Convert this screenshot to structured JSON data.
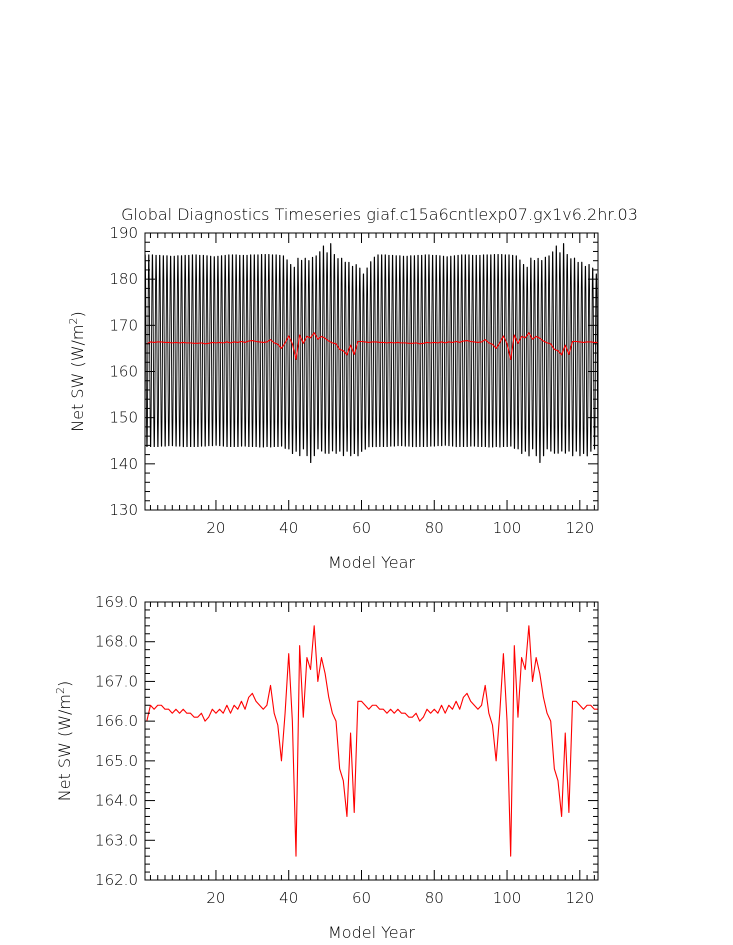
{
  "chart_data": [
    {
      "type": "line",
      "title": "Global Diagnostics Timeseries giaf.c15a6cntlexp07.gx1v6.2hr.03",
      "xlabel": "Model Year",
      "ylabel": "Net SW (W/m",
      "ylabel_sup": "2",
      "ylabel_close": ")",
      "xlim": [
        0.5,
        125
      ],
      "ylim": [
        130,
        190
      ],
      "xticks": [
        20,
        40,
        60,
        80,
        100,
        120
      ],
      "yticks": [
        130,
        140,
        150,
        160,
        170,
        180,
        190
      ],
      "ytick_decimals": 0,
      "grid": false,
      "series": [
        {
          "kind": "monthly",
          "color": "#000000",
          "start_year": 0.5,
          "step": 0.0833333,
          "annual_max": [
            186.0,
            186.0,
            186.0,
            185.9,
            185.9,
            185.8,
            185.8,
            185.7,
            185.7,
            185.8,
            185.8,
            185.9,
            185.9,
            186.0,
            186.0,
            185.9,
            185.9,
            185.8,
            185.7,
            185.6,
            185.7,
            185.8,
            185.9,
            186.0,
            186.0,
            186.0,
            185.9,
            185.9,
            185.9,
            186.0,
            186.0,
            186.0,
            186.1,
            186.1,
            186.1,
            186.0,
            186.0,
            185.9,
            185.8,
            184.9,
            183.9,
            183.3,
            185.3,
            184.8,
            185.3,
            184.8,
            185.5,
            185.8,
            186.7,
            188.0,
            186.5,
            188.5,
            186.1,
            185.2,
            185.3,
            184.4,
            184.4,
            183.5,
            183.9,
            183.1,
            181.8,
            183.1,
            184.5,
            185.5,
            186.0,
            186.0,
            186.0,
            185.9,
            185.9,
            185.8,
            185.8,
            185.7,
            185.7,
            185.8,
            185.8,
            185.9,
            185.9,
            186.0,
            186.0,
            185.9,
            185.9,
            185.8,
            185.7,
            185.6,
            185.7,
            185.8,
            185.9,
            186.0,
            186.0,
            186.0,
            185.9,
            185.9,
            185.9,
            186.0,
            186.0,
            186.0,
            186.1,
            186.1,
            186.1,
            186.0,
            186.0,
            185.9,
            185.8,
            184.9,
            183.9,
            183.3,
            185.3,
            184.8,
            185.3,
            184.8,
            185.5,
            185.8,
            186.7,
            188.0,
            186.5,
            188.5,
            186.1,
            185.2,
            185.3,
            184.4,
            184.4,
            183.5,
            183.9,
            183.1,
            181.8
          ],
          "annual_min": [
            143.0,
            143.0,
            143.0,
            143.0,
            143.1,
            143.1,
            143.2,
            143.2,
            143.1,
            143.1,
            143.0,
            143.0,
            143.0,
            143.0,
            143.0,
            143.1,
            143.1,
            143.2,
            143.2,
            143.3,
            143.2,
            143.1,
            143.0,
            143.0,
            143.0,
            143.0,
            143.1,
            143.1,
            143.0,
            143.0,
            143.0,
            142.9,
            142.9,
            143.0,
            142.9,
            143.0,
            143.0,
            143.1,
            142.6,
            142.5,
            141.5,
            142.0,
            141.0,
            142.5,
            141.0,
            139.5,
            141.0,
            142.5,
            142.0,
            141.5,
            141.5,
            142.0,
            141.5,
            142.0,
            141.0,
            142.0,
            141.0,
            141.5,
            141.0,
            142.0,
            142.5,
            143.0,
            143.0,
            143.0,
            143.0,
            143.0,
            143.0,
            143.1,
            143.1,
            143.2,
            143.2,
            143.1,
            143.1,
            143.0,
            143.0,
            143.0,
            143.0,
            143.0,
            143.1,
            143.1,
            143.2,
            143.2,
            143.3,
            143.2,
            143.1,
            143.0,
            143.0,
            143.0,
            143.0,
            143.1,
            143.1,
            143.0,
            143.0,
            143.0,
            142.9,
            142.9,
            143.0,
            142.9,
            143.0,
            143.0,
            143.1,
            142.6,
            142.5,
            141.5,
            142.0,
            141.0,
            142.5,
            141.0,
            139.5,
            141.0,
            142.5,
            142.0,
            141.5,
            141.5,
            142.0,
            141.5,
            142.0,
            141.0,
            142.0,
            141.0,
            141.5,
            141.0,
            142.0,
            142.5,
            143.0
          ]
        },
        {
          "kind": "annual",
          "color": "#ff0000",
          "x": [
            1,
            2,
            3,
            4,
            5,
            6,
            7,
            8,
            9,
            10,
            11,
            12,
            13,
            14,
            15,
            16,
            17,
            18,
            19,
            20,
            21,
            22,
            23,
            24,
            25,
            26,
            27,
            28,
            29,
            30,
            31,
            32,
            33,
            34,
            35,
            36,
            37,
            38,
            39,
            40,
            41,
            42,
            43,
            44,
            45,
            46,
            47,
            48,
            49,
            50,
            51,
            52,
            53,
            54,
            55,
            56,
            57,
            58,
            59,
            60,
            61,
            62,
            63,
            64,
            65,
            66,
            67,
            68,
            69,
            70,
            71,
            72,
            73,
            74,
            75,
            76,
            77,
            78,
            79,
            80,
            81,
            82,
            83,
            84,
            85,
            86,
            87,
            88,
            89,
            90,
            91,
            92,
            93,
            94,
            95,
            96,
            97,
            98,
            99,
            100,
            101,
            102,
            103,
            104,
            105,
            106,
            107,
            108,
            109,
            110,
            111,
            112,
            113,
            114,
            115,
            116,
            117,
            118,
            119,
            120,
            121,
            122,
            123,
            124,
            125
          ],
          "values": [
            166.0,
            166.4,
            166.3,
            166.4,
            166.4,
            166.3,
            166.3,
            166.2,
            166.3,
            166.2,
            166.3,
            166.2,
            166.2,
            166.1,
            166.1,
            166.2,
            166.0,
            166.1,
            166.3,
            166.2,
            166.3,
            166.2,
            166.4,
            166.2,
            166.4,
            166.3,
            166.5,
            166.3,
            166.6,
            166.7,
            166.5,
            166.4,
            166.3,
            166.4,
            166.9,
            166.2,
            165.9,
            165.0,
            166.2,
            167.7,
            166.0,
            162.6,
            167.9,
            166.1,
            167.6,
            167.3,
            168.4,
            167.0,
            167.6,
            167.2,
            166.6,
            166.2,
            166.0,
            164.8,
            164.5,
            163.6,
            165.7,
            163.7,
            166.5,
            166.5,
            166.4,
            166.3,
            166.4,
            166.4,
            166.3,
            166.3,
            166.2,
            166.3,
            166.2,
            166.3,
            166.2,
            166.2,
            166.1,
            166.1,
            166.2,
            166.0,
            166.1,
            166.3,
            166.2,
            166.3,
            166.2,
            166.4,
            166.2,
            166.4,
            166.3,
            166.5,
            166.3,
            166.6,
            166.7,
            166.5,
            166.4,
            166.3,
            166.4,
            166.9,
            166.2,
            165.9,
            165.0,
            166.2,
            167.7,
            166.0,
            162.6,
            167.9,
            166.1,
            167.6,
            167.3,
            168.4,
            167.0,
            167.6,
            167.2,
            166.6,
            166.2,
            166.0,
            164.8,
            164.5,
            163.6,
            165.7,
            163.7,
            166.5,
            166.5,
            166.4,
            166.3,
            166.4,
            166.4,
            166.3,
            166.3
          ]
        }
      ]
    },
    {
      "type": "line",
      "title": "",
      "xlabel": "Model Year",
      "ylabel": "Net SW (W/m",
      "ylabel_sup": "2",
      "ylabel_close": ")",
      "xlim": [
        0.5,
        125
      ],
      "ylim": [
        162,
        169
      ],
      "xticks": [
        20,
        40,
        60,
        80,
        100,
        120
      ],
      "yticks": [
        162,
        163,
        164,
        165,
        166,
        167,
        168,
        169
      ],
      "ytick_decimals": 1,
      "grid": false,
      "series": [
        {
          "kind": "annual",
          "color": "#ff0000",
          "x": [
            1,
            2,
            3,
            4,
            5,
            6,
            7,
            8,
            9,
            10,
            11,
            12,
            13,
            14,
            15,
            16,
            17,
            18,
            19,
            20,
            21,
            22,
            23,
            24,
            25,
            26,
            27,
            28,
            29,
            30,
            31,
            32,
            33,
            34,
            35,
            36,
            37,
            38,
            39,
            40,
            41,
            42,
            43,
            44,
            45,
            46,
            47,
            48,
            49,
            50,
            51,
            52,
            53,
            54,
            55,
            56,
            57,
            58,
            59,
            60,
            61,
            62,
            63,
            64,
            65,
            66,
            67,
            68,
            69,
            70,
            71,
            72,
            73,
            74,
            75,
            76,
            77,
            78,
            79,
            80,
            81,
            82,
            83,
            84,
            85,
            86,
            87,
            88,
            89,
            90,
            91,
            92,
            93,
            94,
            95,
            96,
            97,
            98,
            99,
            100,
            101,
            102,
            103,
            104,
            105,
            106,
            107,
            108,
            109,
            110,
            111,
            112,
            113,
            114,
            115,
            116,
            117,
            118,
            119,
            120,
            121,
            122,
            123,
            124,
            125
          ],
          "values": [
            166.0,
            166.4,
            166.3,
            166.4,
            166.4,
            166.3,
            166.3,
            166.2,
            166.3,
            166.2,
            166.3,
            166.2,
            166.2,
            166.1,
            166.1,
            166.2,
            166.0,
            166.1,
            166.3,
            166.2,
            166.3,
            166.2,
            166.4,
            166.2,
            166.4,
            166.3,
            166.5,
            166.3,
            166.6,
            166.7,
            166.5,
            166.4,
            166.3,
            166.4,
            166.9,
            166.2,
            165.9,
            165.0,
            166.2,
            167.7,
            166.0,
            162.6,
            167.9,
            166.1,
            167.6,
            167.3,
            168.4,
            167.0,
            167.6,
            167.2,
            166.6,
            166.2,
            166.0,
            164.8,
            164.5,
            163.6,
            165.7,
            163.7,
            166.5,
            166.5,
            166.4,
            166.3,
            166.4,
            166.4,
            166.3,
            166.3,
            166.2,
            166.3,
            166.2,
            166.3,
            166.2,
            166.2,
            166.1,
            166.1,
            166.2,
            166.0,
            166.1,
            166.3,
            166.2,
            166.3,
            166.2,
            166.4,
            166.2,
            166.4,
            166.3,
            166.5,
            166.3,
            166.6,
            166.7,
            166.5,
            166.4,
            166.3,
            166.4,
            166.9,
            166.2,
            165.9,
            165.0,
            166.2,
            167.7,
            166.0,
            162.6,
            167.9,
            166.1,
            167.6,
            167.3,
            168.4,
            167.0,
            167.6,
            167.2,
            166.6,
            166.2,
            166.0,
            164.8,
            164.5,
            163.6,
            165.7,
            163.7,
            166.5,
            166.5,
            166.4,
            166.3,
            166.4,
            166.4,
            166.3,
            166.3
          ]
        }
      ]
    }
  ]
}
